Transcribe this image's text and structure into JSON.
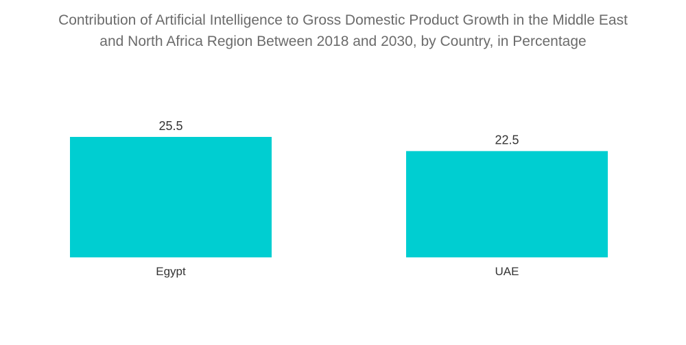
{
  "chart_data": {
    "type": "bar",
    "title_lines": [
      "Contribution of Artificial Intelligence to Gross Domestic Product Growth in the Middle East",
      "and North Africa Region Between 2018 and 2030, by Country, in Percentage"
    ],
    "categories": [
      "Egypt",
      "UAE"
    ],
    "values": [
      25.5,
      22.5
    ],
    "value_labels": [
      "25.5",
      "22.5"
    ],
    "xlabel": "",
    "ylabel": "",
    "ylim": [
      0,
      25.5
    ],
    "grid": false,
    "legend": "none",
    "bar_color": "#00CED1"
  }
}
